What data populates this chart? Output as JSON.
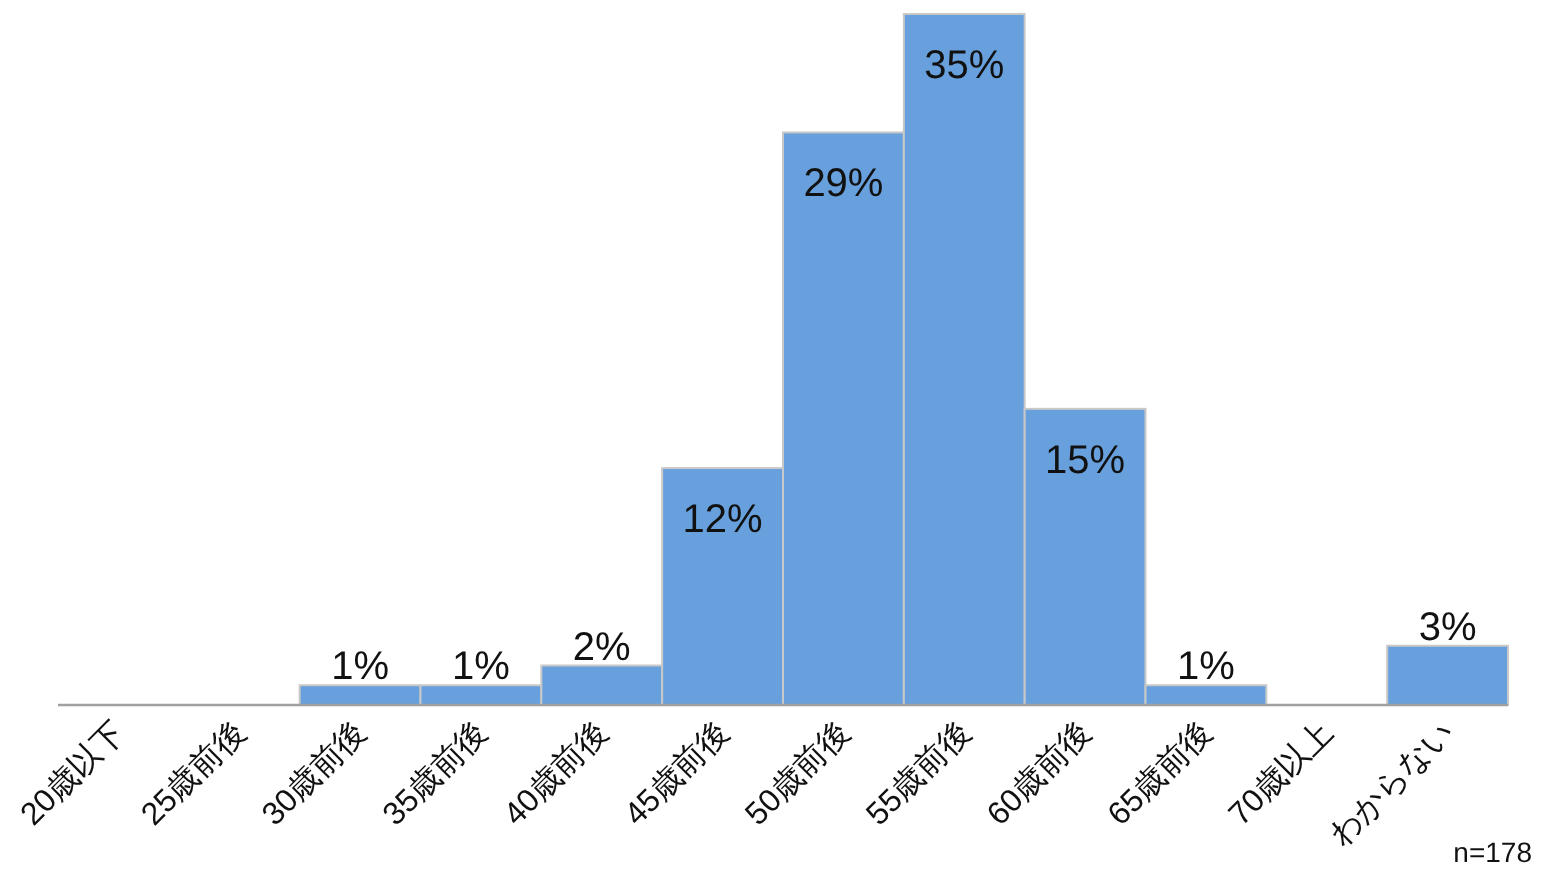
{
  "chart_data": {
    "type": "bar",
    "categories": [
      "20歳以下",
      "25歳前後",
      "30歳前後",
      "35歳前後",
      "40歳前後",
      "45歳前後",
      "50歳前後",
      "55歳前後",
      "60歳前後",
      "65歳前後",
      "70歳以上",
      "わからない"
    ],
    "values": [
      0,
      0,
      1,
      1,
      2,
      12,
      29,
      35,
      15,
      1,
      0,
      3
    ],
    "color": "#67a0dd",
    "value_labels": [
      null,
      null,
      "1%",
      "1%",
      "2%",
      "12%",
      "29%",
      "35%",
      "15%",
      "1%",
      null,
      "3%"
    ],
    "annotations": [
      "n=178"
    ]
  }
}
